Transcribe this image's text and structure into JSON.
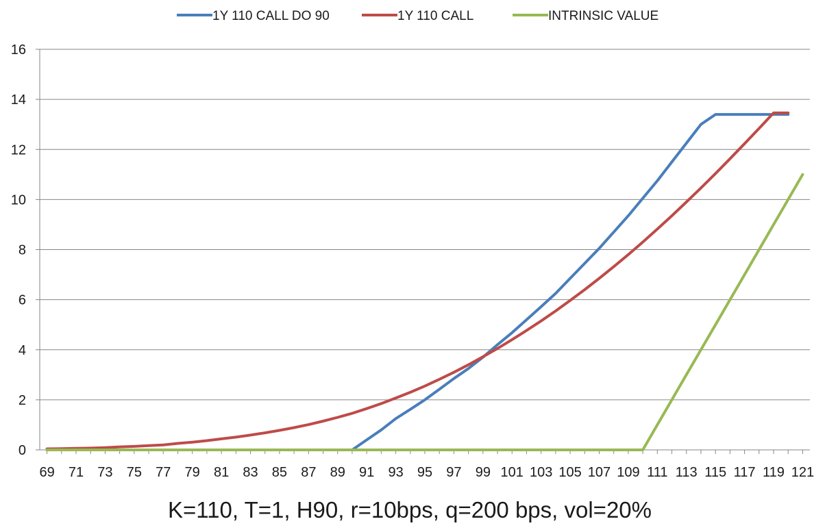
{
  "chart_data": {
    "type": "line",
    "title": "",
    "subtitle": "K=110, T=1, H90, r=10bps, q=200 bps, vol=20%",
    "xlabel": "",
    "ylabel": "",
    "x": [
      69,
      70,
      71,
      72,
      73,
      74,
      75,
      76,
      77,
      78,
      79,
      80,
      81,
      82,
      83,
      84,
      85,
      86,
      87,
      88,
      89,
      90,
      91,
      92,
      93,
      94,
      95,
      96,
      97,
      98,
      99,
      100,
      101,
      102,
      103,
      104,
      105,
      106,
      107,
      108,
      109,
      110,
      111,
      112,
      113,
      114,
      115,
      116,
      117,
      118,
      119,
      120
    ],
    "x_tick_labels": [
      "69",
      "71",
      "73",
      "75",
      "77",
      "79",
      "81",
      "83",
      "85",
      "87",
      "89",
      "91",
      "93",
      "95",
      "97",
      "99",
      "101",
      "103",
      "105",
      "107",
      "109",
      "111",
      "113",
      "115",
      "117",
      "119",
      "121"
    ],
    "x_range": [
      68.5,
      121.5
    ],
    "ylim": [
      0,
      16
    ],
    "y_ticks": [
      0,
      2,
      4,
      6,
      8,
      10,
      12,
      14,
      16
    ],
    "y_tick_labels": [
      "0",
      "2",
      "4",
      "6",
      "8",
      "10",
      "12",
      "14",
      "16"
    ],
    "grid": "horizontal",
    "legend_position": "top-center",
    "series": [
      {
        "name": "1Y 110 CALL DO 90",
        "color": "#4a7ebb",
        "values": [
          0,
          0,
          0,
          0,
          0,
          0,
          0,
          0,
          0,
          0,
          0,
          0,
          0,
          0,
          0,
          0,
          0,
          0,
          0,
          0,
          0,
          0.0,
          0.4,
          0.8,
          1.25,
          1.62,
          2.0,
          2.42,
          2.85,
          3.25,
          3.7,
          4.2,
          4.68,
          5.2,
          5.72,
          6.25,
          6.85,
          7.45,
          8.05,
          8.7,
          9.35,
          10.05,
          10.75,
          11.5,
          12.25,
          13.0,
          13.4,
          13.4,
          13.4,
          13.4,
          13.4,
          13.4
        ],
        "x_values": [
          69,
          70,
          71,
          72,
          73,
          74,
          75,
          76,
          77,
          78,
          79,
          80,
          81,
          82,
          83,
          84,
          85,
          86,
          87,
          88,
          89,
          90,
          91,
          92,
          93,
          94,
          95,
          96,
          97,
          98,
          99,
          100,
          101,
          102,
          103,
          104,
          105,
          106,
          107,
          108,
          109,
          110,
          111,
          112,
          113,
          114,
          115,
          116,
          117,
          118,
          119,
          120
        ]
      },
      {
        "name": "1Y 110 CALL",
        "color": "#be4b48",
        "values": [
          0.04,
          0.05,
          0.06,
          0.07,
          0.09,
          0.12,
          0.14,
          0.17,
          0.2,
          0.26,
          0.31,
          0.37,
          0.44,
          0.51,
          0.59,
          0.68,
          0.78,
          0.89,
          1.01,
          1.15,
          1.3,
          1.46,
          1.65,
          1.85,
          2.07,
          2.3,
          2.55,
          2.82,
          3.1,
          3.4,
          3.72,
          4.05,
          4.4,
          4.77,
          5.15,
          5.55,
          5.97,
          6.4,
          6.85,
          7.32,
          7.8,
          8.3,
          8.82,
          9.35,
          9.9,
          10.46,
          11.04,
          11.63,
          12.23,
          12.84,
          13.46,
          13.46
        ],
        "x_values": [
          69,
          70,
          71,
          72,
          73,
          74,
          75,
          76,
          77,
          78,
          79,
          80,
          81,
          82,
          83,
          84,
          85,
          86,
          87,
          88,
          89,
          90,
          91,
          92,
          93,
          94,
          95,
          96,
          97,
          98,
          99,
          100,
          101,
          102,
          103,
          104,
          105,
          106,
          107,
          108,
          109,
          110,
          111,
          112,
          113,
          114,
          115,
          116,
          117,
          118,
          119,
          120
        ]
      },
      {
        "name": "INTRINSIC VALUE",
        "color": "#98b954",
        "values": [
          0,
          0,
          0,
          0,
          0,
          0,
          0,
          0,
          0,
          0,
          0,
          0,
          0,
          0,
          0,
          0,
          0,
          0,
          0,
          0,
          0,
          0,
          0,
          0,
          0,
          0,
          0,
          0,
          0,
          0,
          0,
          0,
          0,
          0,
          0,
          0,
          0,
          0,
          0,
          0,
          0,
          0,
          1,
          2,
          3,
          4,
          5,
          6,
          7,
          8,
          9,
          10,
          11
        ],
        "x_values": [
          69,
          70,
          71,
          72,
          73,
          74,
          75,
          76,
          77,
          78,
          79,
          80,
          81,
          82,
          83,
          84,
          85,
          86,
          87,
          88,
          89,
          90,
          91,
          92,
          93,
          94,
          95,
          96,
          97,
          98,
          99,
          100,
          101,
          102,
          103,
          104,
          105,
          106,
          107,
          108,
          109,
          110,
          111,
          112,
          113,
          114,
          115,
          116,
          117,
          118,
          119,
          120,
          121
        ]
      }
    ]
  }
}
